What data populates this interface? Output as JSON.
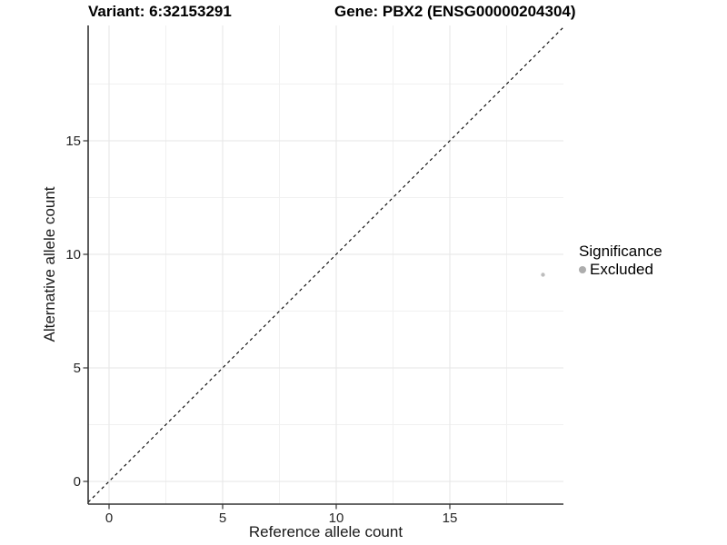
{
  "chart_data": {
    "type": "scatter",
    "title_left": "Variant: 6:32153291",
    "title_right": "Gene: PBX2 (ENSG00000204304)",
    "xlabel": "Reference allele count",
    "ylabel": "Alternative allele count",
    "xlim": [
      -0.92,
      20.0
    ],
    "ylim": [
      -1.0,
      20.08
    ],
    "xticks": [
      0,
      5,
      10,
      15
    ],
    "yticks": [
      0,
      5,
      10,
      15
    ],
    "minor_gridlines_x": [
      2.5,
      7.5,
      12.5,
      17.5
    ],
    "minor_gridlines_y": [
      2.5,
      7.5,
      12.5,
      17.5
    ],
    "grid": "major+minor",
    "identity_line": {
      "type": "abline",
      "slope": 1,
      "intercept": 0,
      "style": "dashed",
      "color": "#000000"
    },
    "series": [
      {
        "name": "Excluded",
        "color": "#bdbdbd",
        "marker": "circle",
        "marker_radius": 2.2,
        "points": [
          {
            "x": 19.1,
            "y": 9.1
          }
        ]
      }
    ],
    "legend": {
      "title": "Significance",
      "position": "right",
      "entries": [
        {
          "label": "Excluded",
          "color": "#adadad",
          "marker": "circle"
        }
      ]
    },
    "colors": {
      "background": "#ffffff",
      "grid_major": "#e6e6e6",
      "grid_minor": "#f1f1f1",
      "axis_line": "#333333",
      "tick": "#333333",
      "tick_label": "#262626"
    }
  }
}
